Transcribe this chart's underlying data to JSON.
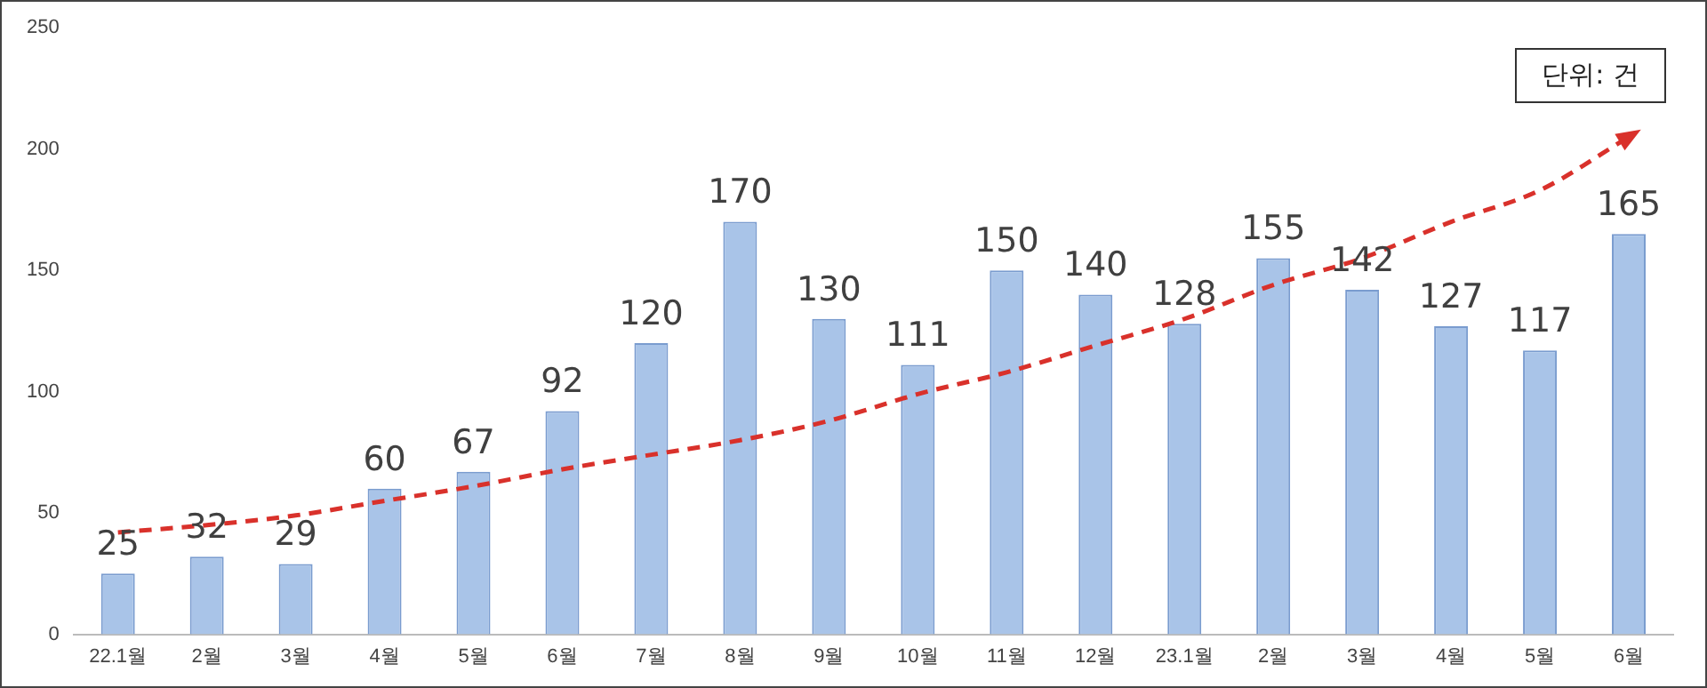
{
  "chart_data": {
    "type": "bar",
    "categories": [
      "22.1월",
      "2월",
      "3월",
      "4월",
      "5월",
      "6월",
      "7월",
      "8월",
      "9월",
      "10월",
      "11월",
      "12월",
      "23.1월",
      "2월",
      "3월",
      "4월",
      "5월",
      "6월"
    ],
    "series": [
      {
        "color": "#a9c4e8",
        "values": [
          25,
          32,
          29,
          60,
          67,
          92,
          120,
          170,
          130,
          111,
          150,
          140,
          128,
          155,
          142,
          127,
          117,
          165
        ],
        "data_labels": true
      },
      {
        "type": "line",
        "color": "#d9312b",
        "line_style": "dashed",
        "marker": "none",
        "values": [
          42,
          45,
          49,
          55,
          61,
          68,
          74,
          80,
          88,
          99,
          108,
          119,
          130,
          144,
          155,
          170,
          183,
          205
        ]
      }
    ],
    "ylim": [
      0,
      250
    ],
    "yticks": [
      0,
      50,
      100,
      150,
      200,
      250
    ],
    "grid": false,
    "legend": false,
    "annotations": [
      "단위: 건"
    ]
  }
}
